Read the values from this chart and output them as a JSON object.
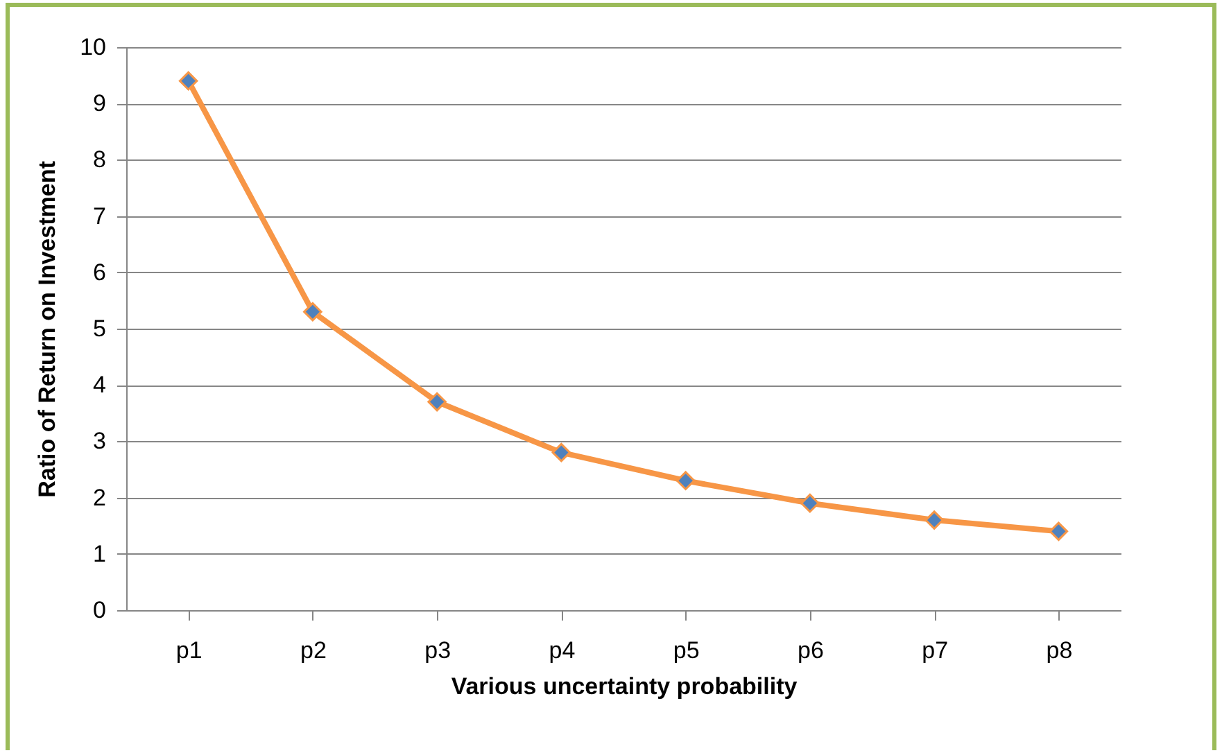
{
  "chart_data": {
    "type": "line",
    "xlabel": "Various uncertainty probability",
    "ylabel": "Ratio of Return on Investment",
    "categories": [
      "p1",
      "p2",
      "p3",
      "p4",
      "p5",
      "p6",
      "p7",
      "p8"
    ],
    "series": [
      {
        "color": "#f79646",
        "colors": [
          "#4f81bd",
          "#4f81bd",
          "#4f81bd",
          "#4f81bd",
          "#4f81bd",
          "#4f81bd",
          "#4f81bd",
          "#4f81bd"
        ],
        "values": [
          9.4,
          5.3,
          3.7,
          2.8,
          2.3,
          1.9,
          1.6,
          1.4
        ]
      }
    ],
    "ylim": [
      0,
      10
    ],
    "yticks": [
      0,
      1,
      2,
      3,
      4,
      5,
      6,
      7,
      8,
      9,
      10
    ],
    "grid": "y",
    "marker": "diamond",
    "line_style": "solid"
  }
}
